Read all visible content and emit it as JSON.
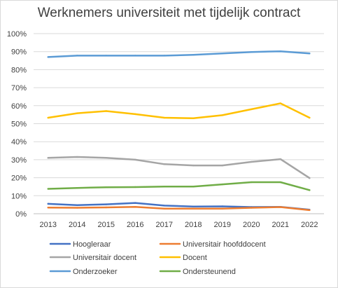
{
  "chart_data": {
    "type": "line",
    "title": "Werknemers universiteit met tijdelijk contract",
    "categories": [
      "2013",
      "2014",
      "2015",
      "2016",
      "2017",
      "2018",
      "2019",
      "2020",
      "2021",
      "2022"
    ],
    "ylim": [
      0,
      100
    ],
    "yticks": [
      "0%",
      "10%",
      "20%",
      "30%",
      "40%",
      "50%",
      "60%",
      "70%",
      "80%",
      "90%",
      "100%"
    ],
    "grid": true,
    "legend_position": "bottom",
    "series": [
      {
        "name": "Hoogleraar",
        "color": "#4472c4",
        "values": [
          5.5,
          4.8,
          5.2,
          6.0,
          4.5,
          4.0,
          4.1,
          3.7,
          3.8,
          2.2
        ]
      },
      {
        "name": "Universitair hoofddocent",
        "color": "#ed7d31",
        "values": [
          3.4,
          3.3,
          3.5,
          3.8,
          2.8,
          2.8,
          2.8,
          3.3,
          3.7,
          2.0
        ]
      },
      {
        "name": "Universitair docent",
        "color": "#a5a5a5",
        "values": [
          31.0,
          31.5,
          31.0,
          30.0,
          27.5,
          26.8,
          26.8,
          28.8,
          30.3,
          19.8
        ]
      },
      {
        "name": "Docent",
        "color": "#ffc000",
        "values": [
          53.3,
          55.8,
          57.0,
          55.3,
          53.3,
          53.0,
          54.7,
          58.0,
          61.3,
          53.3
        ]
      },
      {
        "name": "Onderzoeker",
        "color": "#5b9bd5",
        "values": [
          87.0,
          87.8,
          87.8,
          87.8,
          87.8,
          88.2,
          89.0,
          89.8,
          90.2,
          89.0
        ]
      },
      {
        "name": "Ondersteunend",
        "color": "#70ad47",
        "values": [
          13.8,
          14.3,
          14.7,
          14.8,
          15.1,
          15.1,
          16.3,
          17.5,
          17.5,
          13.1
        ]
      }
    ]
  }
}
